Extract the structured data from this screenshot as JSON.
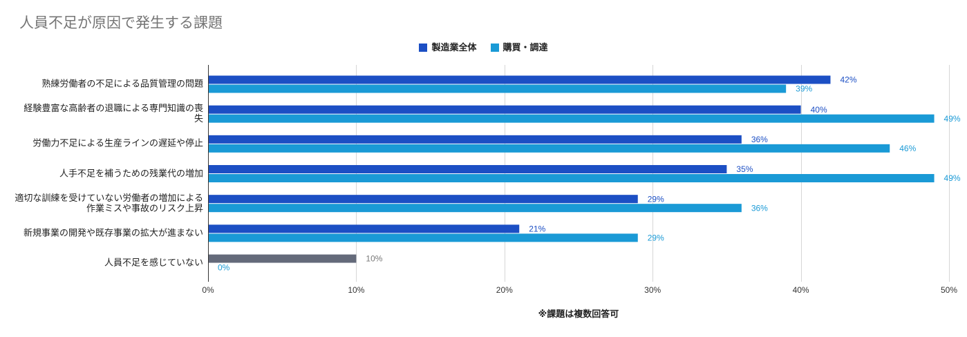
{
  "chart_data": {
    "type": "bar",
    "orientation": "horizontal",
    "title": "人員不足が原因で発生する課題",
    "categories": [
      "熟練労働者の不足による品質管理の問題",
      "経験豊富な高齢者の退職による専門知識の喪\n失",
      "労働力不足による生産ラインの遅延や停止",
      "人手不足を補うための残業代の増加",
      "適切な訓練を受けていない労働者の増加による\n作業ミスや事故のリスク上昇",
      "新規事業の開発や既存事業の拡大が進まない",
      "人員不足を感じていない"
    ],
    "series": [
      {
        "name": "製造業全体",
        "color": "#1c4fc4",
        "values": [
          42,
          40,
          36,
          35,
          29,
          21,
          10
        ],
        "labels": [
          "42%",
          "40%",
          "36%",
          "35%",
          "29%",
          "21%",
          "10%"
        ],
        "point_overrides": [
          {
            "index": 6,
            "color": "#646a7a",
            "label_color": "#777777"
          }
        ]
      },
      {
        "name": "購買・調達",
        "color": "#1a9ad6",
        "values": [
          39,
          49,
          46,
          49,
          36,
          29,
          0
        ],
        "labels": [
          "39%",
          "49%",
          "46%",
          "49%",
          "36%",
          "29%",
          "0%"
        ]
      }
    ],
    "xlim": [
      0,
      50
    ],
    "xticks": [
      0,
      10,
      20,
      30,
      40,
      50
    ],
    "xtick_labels": [
      "0%",
      "10%",
      "20%",
      "30%",
      "40%",
      "50%"
    ],
    "grid": true,
    "legend_position": "top-center",
    "footnote": "※課題は複数回答可"
  }
}
